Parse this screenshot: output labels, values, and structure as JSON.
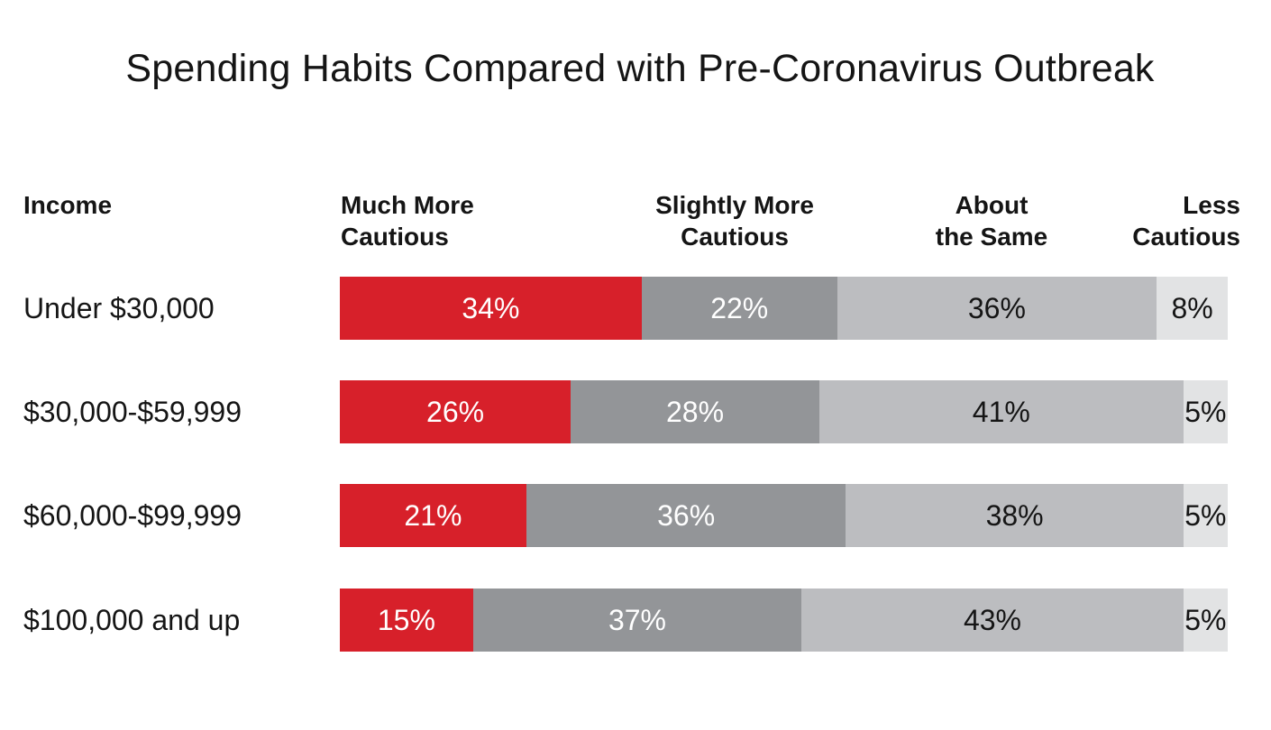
{
  "chart_data": {
    "type": "bar",
    "orientation": "horizontal",
    "stacked": true,
    "title": "Spending Habits Compared with Pre-Coronavirus Outbreak",
    "category_header": "Income",
    "categories": [
      "Under $30,000",
      "$30,000-$59,999",
      "$60,000-$99,999",
      "$100,000 and up"
    ],
    "series": [
      {
        "name": "Much More Cautious",
        "header_lines": [
          "Much More",
          "Cautious"
        ],
        "color": "#d7202a",
        "label_color": "#ffffff",
        "values": [
          34,
          26,
          21,
          15
        ],
        "labels": [
          "34%",
          "26%",
          "21%",
          "15%"
        ]
      },
      {
        "name": "Slightly More Cautious",
        "header_lines": [
          "Slightly More",
          "Cautious"
        ],
        "color": "#939598",
        "label_color": "#ffffff",
        "values": [
          22,
          28,
          36,
          37
        ],
        "labels": [
          "22%",
          "28%",
          "36%",
          "37%"
        ]
      },
      {
        "name": "About the Same",
        "header_lines": [
          "About",
          "the Same"
        ],
        "color": "#bcbdc0",
        "label_color": "#151515",
        "values": [
          36,
          41,
          38,
          43
        ],
        "labels": [
          "36%",
          "41%",
          "38%",
          "43%"
        ]
      },
      {
        "name": "Less Cautious",
        "header_lines": [
          "Less",
          "Cautious"
        ],
        "color": "#e2e3e4",
        "label_color": "#151515",
        "values": [
          8,
          5,
          5,
          5
        ],
        "labels": [
          "8%",
          "5%",
          "5%",
          "5%"
        ]
      }
    ],
    "legend": "top"
  }
}
